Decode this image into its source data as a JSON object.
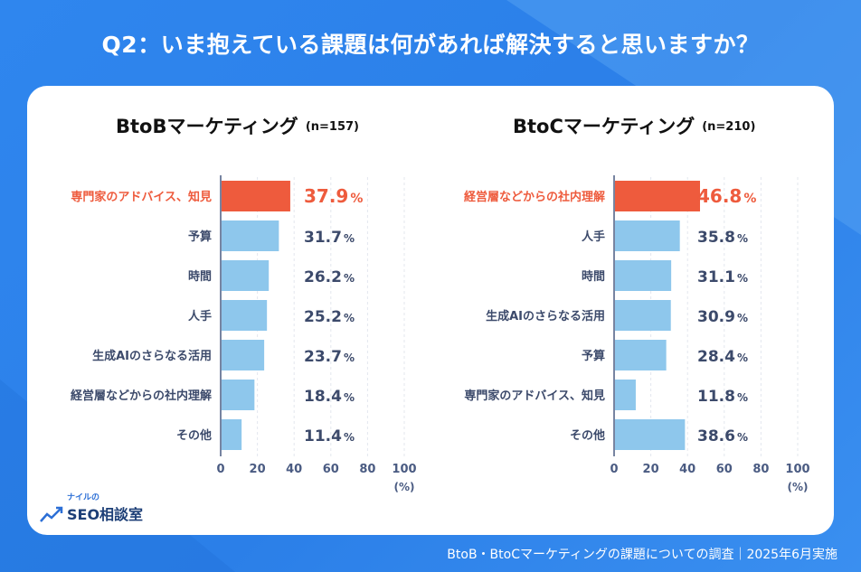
{
  "title": "Q2：いま抱えている課題は何があれば解決すると思いますか？",
  "footer": "BtoB・BtoCマーケティングの課題についての調査｜2025年6月実施",
  "logo": {
    "small": "ナイルの",
    "main": "SEO相談室"
  },
  "colors": {
    "highlight": "#ee5b3d",
    "bar": "#8ec7ec",
    "axis": "#4a5b82",
    "label": "#3c4a6b",
    "value": "#3c4a6b"
  },
  "chart_data": [
    {
      "type": "bar",
      "orientation": "horizontal",
      "title": "BtoBマーケティング",
      "n_label": "(n=157)",
      "categories": [
        "専門家のアドバイス、知見",
        "予算",
        "時間",
        "人手",
        "生成AIのさらなる活用",
        "経営層などからの社内理解",
        "その他"
      ],
      "values": [
        37.9,
        31.7,
        26.2,
        25.2,
        23.7,
        18.4,
        11.4
      ],
      "highlight_index": 0,
      "xlim": [
        0,
        100
      ],
      "xticks": [
        "0",
        "20",
        "40",
        "60",
        "80",
        "100"
      ],
      "xunit": "(%)",
      "value_suffix": "%"
    },
    {
      "type": "bar",
      "orientation": "horizontal",
      "title": "BtoCマーケティング",
      "n_label": "(n=210)",
      "categories": [
        "経営層などからの社内理解",
        "人手",
        "時間",
        "生成AIのさらなる活用",
        "予算",
        "専門家のアドバイス、知見",
        "その他"
      ],
      "values": [
        46.8,
        35.8,
        31.1,
        30.9,
        28.4,
        11.8,
        38.6
      ],
      "highlight_index": 0,
      "xlim": [
        0,
        100
      ],
      "xticks": [
        "0",
        "20",
        "40",
        "60",
        "80",
        "100"
      ],
      "xunit": "(%)",
      "value_suffix": "%"
    }
  ]
}
